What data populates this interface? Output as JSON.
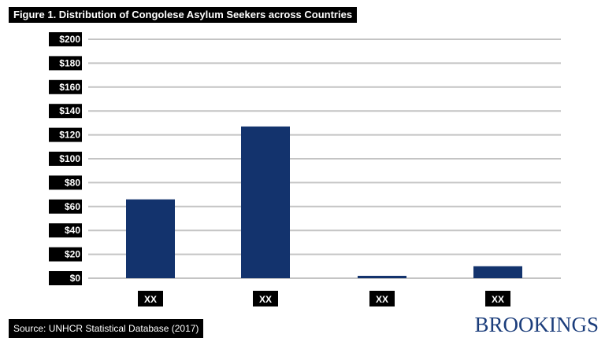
{
  "chart_data": {
    "type": "bar",
    "title": "Figure 1. Distribution of Congolese Asylum Seekers across Countries",
    "categories": [
      "XX",
      "XX",
      "XX",
      "XX"
    ],
    "values": [
      66,
      127,
      2,
      10
    ],
    "yticks": [
      "$0",
      "$20",
      "$40",
      "$60",
      "$80",
      "$100",
      "$120",
      "$140",
      "$160",
      "$180",
      "$200"
    ],
    "ylim": [
      0,
      200
    ],
    "grid": true,
    "bar_color": "#13336d",
    "source": "Source: UNHCR Statistical Database (2017)"
  },
  "brand": {
    "logo_text": "BROOKINGS",
    "color": "#1b3d7b"
  }
}
